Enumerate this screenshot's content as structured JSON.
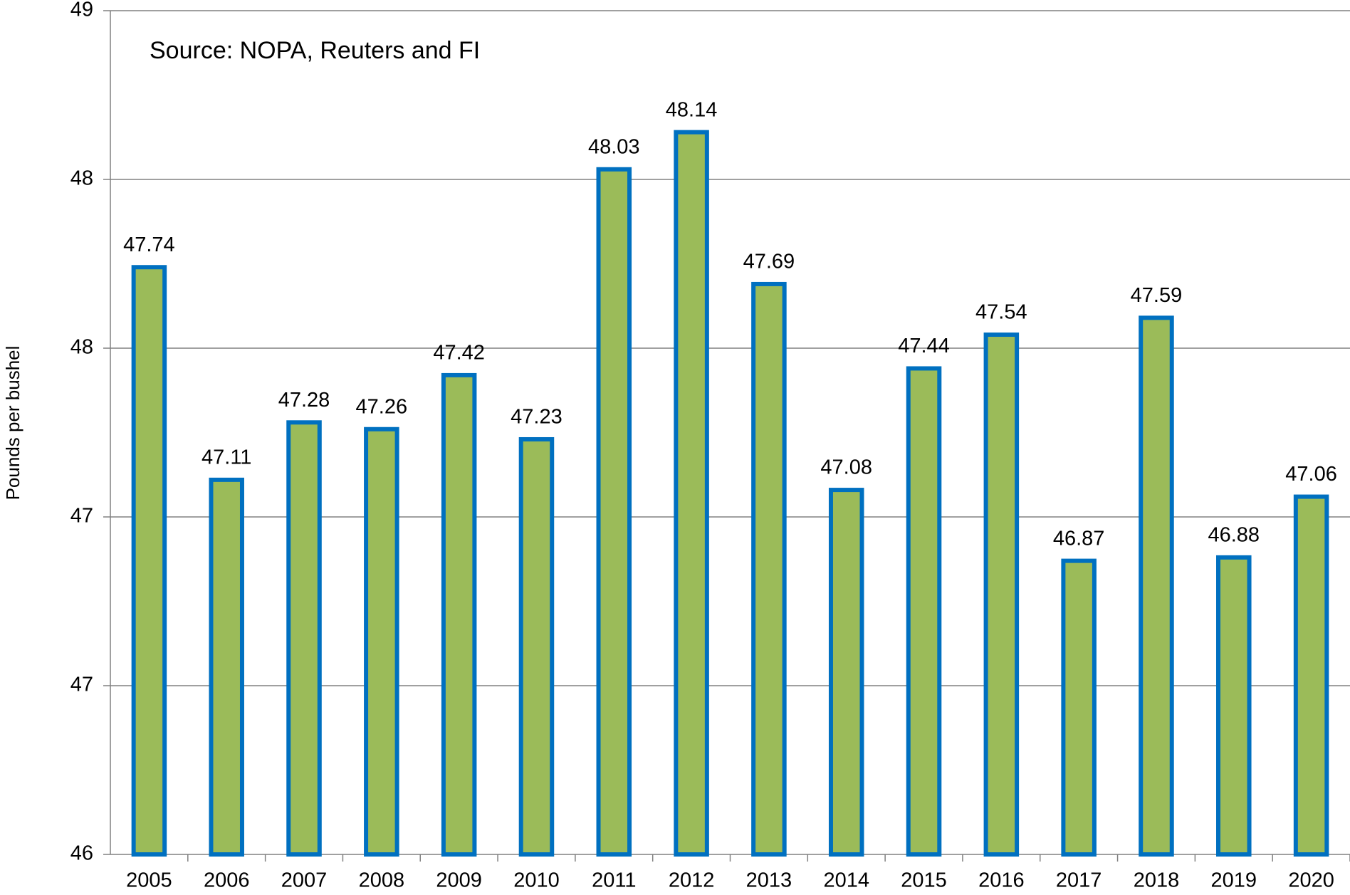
{
  "chart_data": {
    "type": "bar",
    "annotation": "Source: NOPA, Reuters and FI",
    "y_label": "Pounds per bushel",
    "categories": [
      "2005",
      "2006",
      "2007",
      "2008",
      "2009",
      "2010",
      "2011",
      "2012",
      "2013",
      "2014",
      "2015",
      "2016",
      "2017",
      "2018",
      "2019",
      "2020"
    ],
    "values": [
      47.74,
      47.11,
      47.28,
      47.26,
      47.42,
      47.23,
      48.03,
      48.14,
      47.69,
      47.08,
      47.44,
      47.54,
      46.87,
      47.59,
      46.88,
      47.06
    ],
    "color": "#9bbb59",
    "edge_color": "#0070c0",
    "ylim": [
      46,
      48.5
    ],
    "yticks": [
      46,
      {
        "value": 46.5,
        "label": "47"
      },
      47,
      {
        "value": 47.5,
        "label": "48"
      },
      48,
      {
        "value": 48.5,
        "label": "49"
      }
    ],
    "grid": true
  }
}
